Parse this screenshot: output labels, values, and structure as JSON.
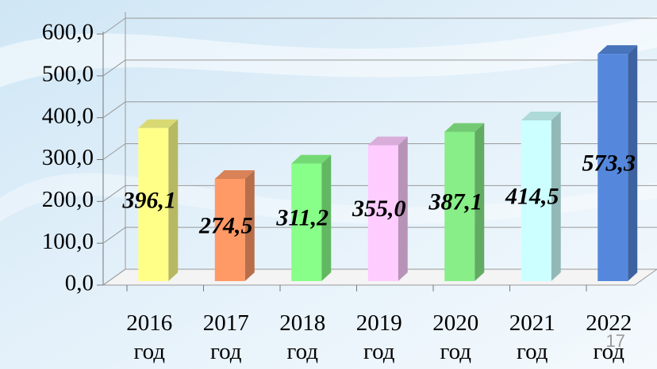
{
  "chart_data": {
    "type": "bar3d",
    "categories": [
      "2016 год",
      "2017 год",
      "2018 год",
      "2019 год",
      "2020 год",
      "2021 год",
      "2022 год"
    ],
    "values": [
      396.1,
      274.5,
      311.2,
      355.0,
      387.1,
      414.5,
      573.3
    ],
    "value_labels": [
      "396,1",
      "274,5",
      "311,2",
      "355,0",
      "387,1",
      "414,5",
      "573,3"
    ],
    "colors": [
      "#ffff88",
      "#ff9966",
      "#88ff88",
      "#ffccff",
      "#88ee88",
      "#ccffff",
      "#5588dd"
    ],
    "ylim": [
      0,
      600
    ],
    "yticks": [
      {
        "value": 0,
        "label": "0,0"
      },
      {
        "value": 100,
        "label": "100,0"
      },
      {
        "value": 200,
        "label": "200,0"
      },
      {
        "value": 300,
        "label": "300,0"
      },
      {
        "value": 400,
        "label": "400,0"
      },
      {
        "value": 500,
        "label": "500,0"
      },
      {
        "value": 600,
        "label": "600,0"
      }
    ],
    "grid": true
  },
  "page_number": "17"
}
